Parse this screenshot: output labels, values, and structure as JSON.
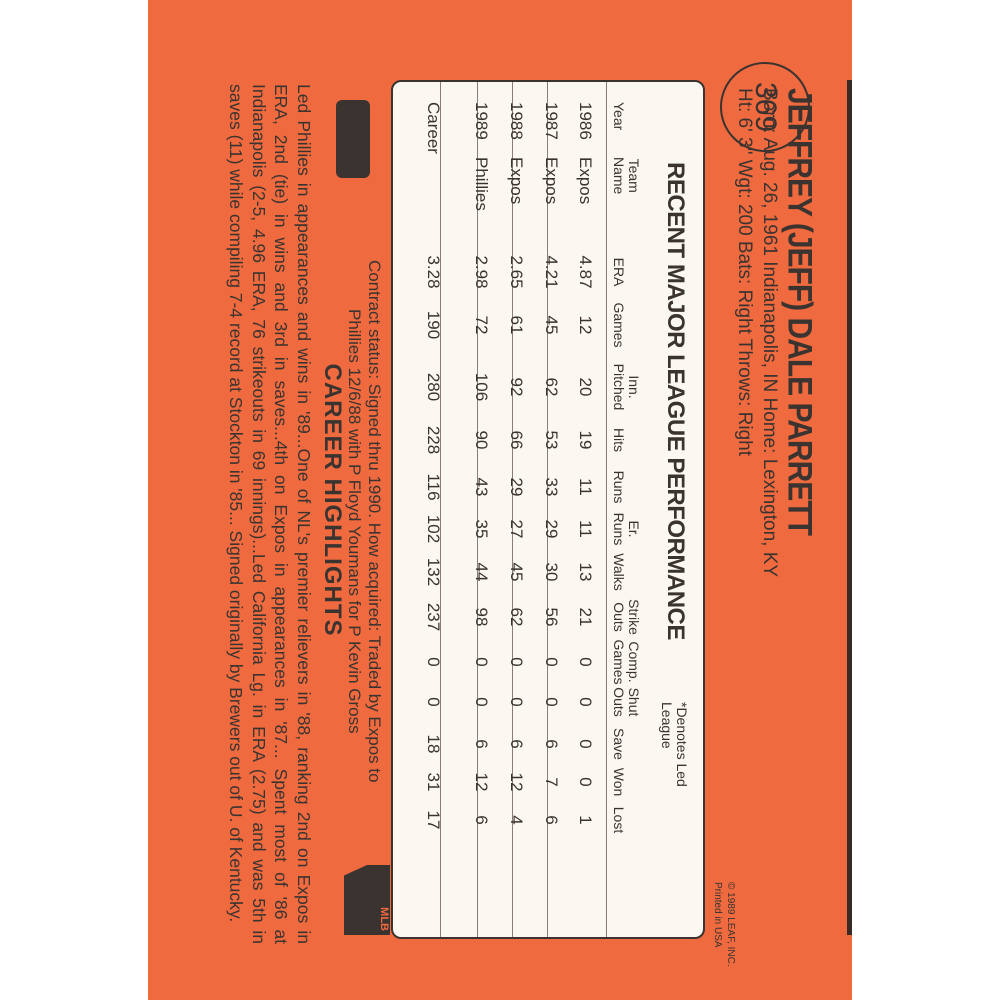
{
  "card_number": "369",
  "player": {
    "name": "JEFFREY (JEFF) DALE PARRETT",
    "born_line": "Born: Aug. 26, 1961  Indianapolis, IN  Home: Lexington, KY",
    "stats_line": "Ht: 6' 3\"  Wgt: 200  Bats: Right  Throws: Right"
  },
  "copyright": [
    "© 1989 LEAF, INC.",
    "Printed in USA"
  ],
  "table": {
    "title": "RECENT MAJOR LEAGUE PERFORMANCE",
    "denotes": "*Denotes Led League",
    "headers": [
      [
        "",
        "Year"
      ],
      [
        "Team",
        "Name"
      ],
      [
        "",
        "ERA"
      ],
      [
        "",
        "Games"
      ],
      [
        "Inn.",
        "Pitched"
      ],
      [
        "",
        "Hits"
      ],
      [
        "",
        "Runs"
      ],
      [
        "Er.",
        "Runs"
      ],
      [
        "",
        "Walks"
      ],
      [
        "Strike",
        "Outs"
      ],
      [
        "Comp.",
        "Games"
      ],
      [
        "Shut",
        "Outs"
      ],
      [
        "",
        "Save"
      ],
      [
        "",
        "Won"
      ],
      [
        "",
        "Lost"
      ]
    ],
    "rows": [
      [
        "1986",
        "Expos",
        "4.87",
        "12",
        "20",
        "19",
        "11",
        "11",
        "13",
        "21",
        "0",
        "0",
        "0",
        "0",
        "1"
      ],
      [
        "1987",
        "Expos",
        "4.21",
        "45",
        "62",
        "53",
        "33",
        "29",
        "30",
        "56",
        "0",
        "0",
        "6",
        "7",
        "6"
      ],
      [
        "1988",
        "Expos",
        "2.65",
        "61",
        "92",
        "66",
        "29",
        "27",
        "45",
        "62",
        "0",
        "0",
        "6",
        "12",
        "4"
      ],
      [
        "1989",
        "Phillies",
        "2.98",
        "72",
        "106",
        "90",
        "43",
        "35",
        "44",
        "98",
        "0",
        "0",
        "6",
        "12",
        "6"
      ],
      [
        "Career",
        "",
        "3.28",
        "190",
        "280",
        "228",
        "116",
        "102",
        "132",
        "237",
        "0",
        "0",
        "18",
        "31",
        "17"
      ]
    ]
  },
  "contract": [
    "Contract status: Signed thru 1990. How acquired: Traded by Expos to",
    "Phillies 12/6/88 with P Floyd Youmans for P Kevin Gross"
  ],
  "highlights_title": "CAREER HIGHLIGHTS",
  "highlights": "Led Phillies in appearances and wins in '89...One of NL's premier relievers in '88, ranking 2nd on Expos in ERA, 2nd (tie) in wins and 3rd in saves...4th on Expos in appearances in '87... Spent most of '86 at Indianapolis (2-5, 4.96 ERA, 76 strikeouts in 69 innings)...Led California Lg. in ERA (2.75) and was 5th in saves (11) while compiling 7-4 record at Stockton in '85... Signed originally by Brewers out of U. of Kentucky.",
  "logos": {
    "mlb_players": "MLB"
  },
  "colors": {
    "card": "#ef6b3f",
    "ink": "#3b3330",
    "table_bg": "#fbf8f2"
  }
}
